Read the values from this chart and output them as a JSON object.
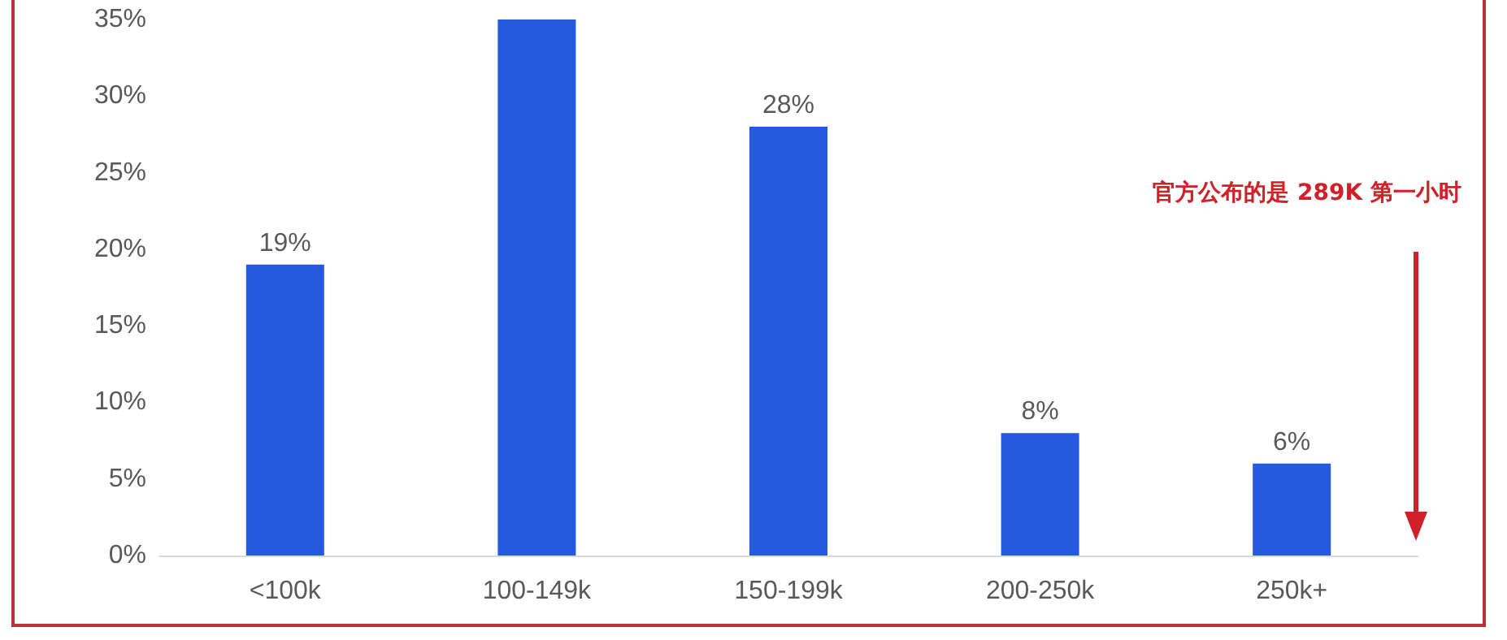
{
  "chart_data": {
    "type": "bar",
    "categories": [
      "<100k",
      "100-149k",
      "150-199k",
      "200-250k",
      "250k+"
    ],
    "values": [
      19,
      35,
      28,
      8,
      6
    ],
    "value_labels": [
      "19%",
      null,
      "28%",
      "8%",
      "6%"
    ],
    "color": "#2459e0",
    "ylim": [
      0,
      35
    ],
    "yticks": [
      {
        "value": 0,
        "label": "0%"
      },
      {
        "value": 5,
        "label": "5%"
      },
      {
        "value": 10,
        "label": "10%"
      },
      {
        "value": 15,
        "label": "15%"
      },
      {
        "value": 20,
        "label": "20%"
      },
      {
        "value": 25,
        "label": "25%"
      },
      {
        "value": 30,
        "label": "30%"
      },
      {
        "value": 35,
        "label": "35%"
      }
    ],
    "grid": false,
    "annotations": [
      "官方公布的是 289K 第一小时"
    ]
  }
}
